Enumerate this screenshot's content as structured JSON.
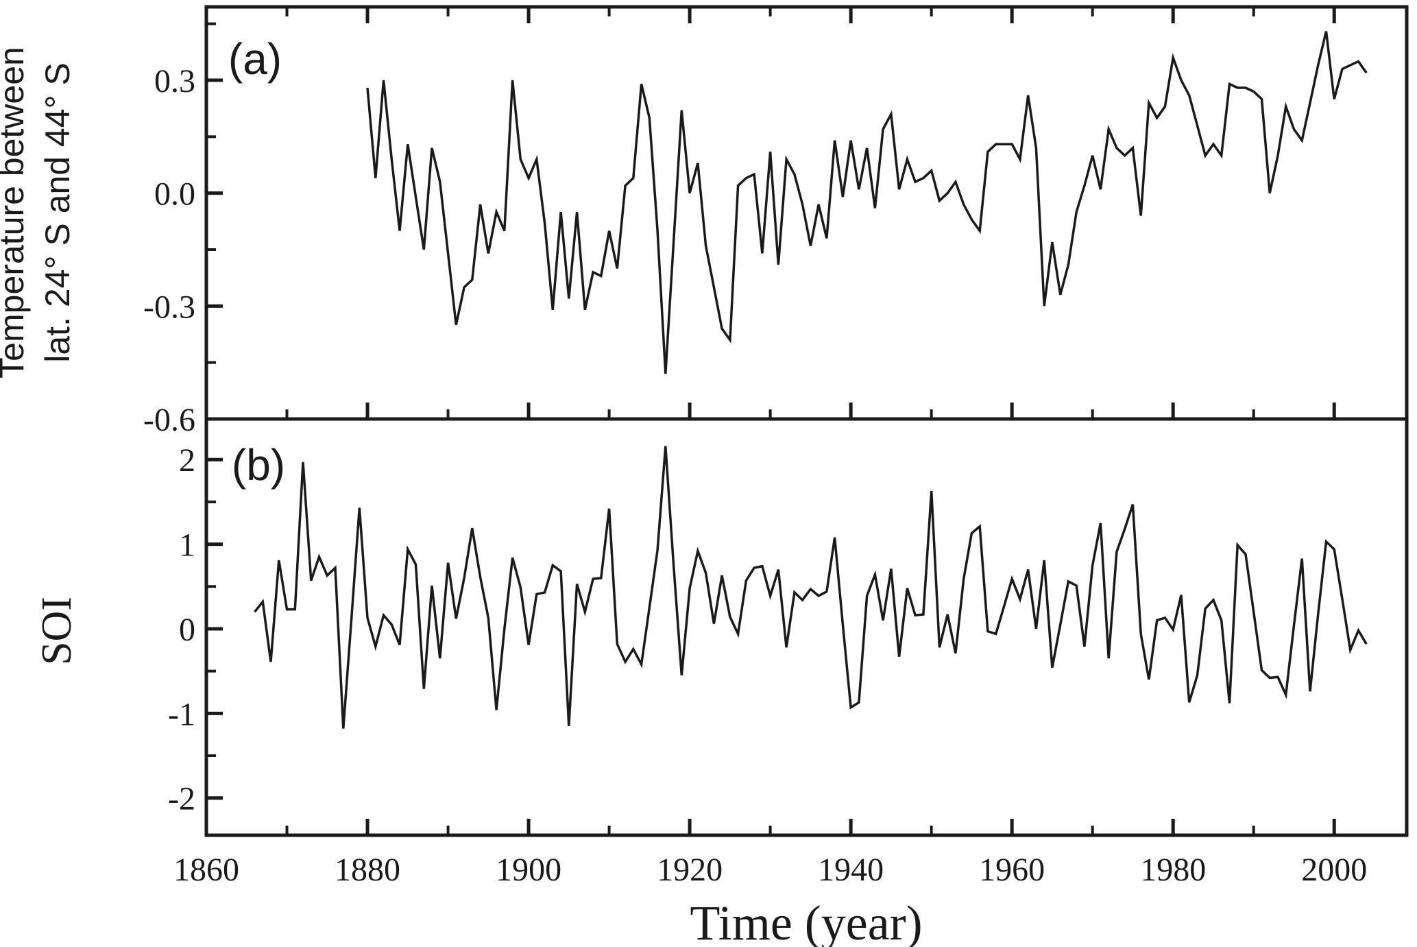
{
  "figure": {
    "xlabel": "Time (year)",
    "panel_a_label": "(a)",
    "panel_b_label": "(b)",
    "ylabel_a_line1": "Temperature between",
    "ylabel_a_line2": "lat. 24° S and 44° S",
    "ylabel_b": "SOI",
    "line_color": "#1a1a1a",
    "background": "#ffffff"
  },
  "chart_data": [
    {
      "type": "line",
      "panel": "(a)",
      "series_name": "Temperature between lat. 24° S and 44° S",
      "xlabel": "Time (year)",
      "ylabel": "Temperature between lat. 24° S and 44° S",
      "grid": false,
      "legend": "none",
      "xlim": [
        1860,
        2009
      ],
      "ylim": [
        -0.6,
        0.495
      ],
      "xticks_major": [
        1860,
        1880,
        1900,
        1920,
        1940,
        1960,
        1980,
        2000
      ],
      "xticks_minor": [
        1870,
        1890,
        1910,
        1930,
        1950,
        1970,
        1990
      ],
      "yticks_major": [
        0.3,
        0.0,
        -0.3,
        -0.6
      ],
      "ytick_labels": [
        "0.3",
        "0.0",
        "-0.3",
        "-0.6"
      ],
      "yticks_minor": [
        0.45,
        0.15,
        -0.15,
        -0.45
      ],
      "x_start": 1880,
      "x_step": 1,
      "values": [
        0.28,
        0.04,
        0.3,
        0.09,
        -0.1,
        0.13,
        -0.01,
        -0.15,
        0.12,
        0.03,
        -0.16,
        -0.35,
        -0.25,
        -0.23,
        -0.03,
        -0.16,
        -0.05,
        -0.1,
        0.3,
        0.09,
        0.04,
        0.09,
        -0.08,
        -0.31,
        -0.05,
        -0.28,
        -0.05,
        -0.31,
        -0.21,
        -0.22,
        -0.1,
        -0.2,
        0.02,
        0.04,
        0.29,
        0.2,
        -0.1,
        -0.48,
        -0.13,
        0.22,
        0.0,
        0.08,
        -0.14,
        -0.25,
        -0.36,
        -0.39,
        0.02,
        0.04,
        0.05,
        -0.16,
        0.11,
        -0.19,
        0.09,
        0.05,
        -0.03,
        -0.14,
        -0.03,
        -0.12,
        0.14,
        -0.01,
        0.14,
        0.01,
        0.12,
        -0.04,
        0.17,
        0.21,
        0.01,
        0.09,
        0.03,
        0.04,
        0.06,
        -0.02,
        0.0,
        0.03,
        -0.03,
        -0.07,
        -0.1,
        0.11,
        0.13,
        0.13,
        0.13,
        0.09,
        0.26,
        0.12,
        -0.3,
        -0.13,
        -0.27,
        -0.19,
        -0.05,
        0.02,
        0.1,
        0.01,
        0.17,
        0.12,
        0.1,
        0.12,
        -0.06,
        0.24,
        0.2,
        0.23,
        0.36,
        0.3,
        0.26,
        0.18,
        0.1,
        0.13,
        0.1,
        0.29,
        0.28,
        0.28,
        0.27,
        0.25,
        0.0,
        0.1,
        0.23,
        0.17,
        0.14,
        0.24,
        0.34,
        0.43,
        0.25,
        0.33,
        0.34,
        0.35,
        0.32
      ]
    },
    {
      "type": "line",
      "panel": "(b)",
      "series_name": "SOI",
      "xlabel": "Time (year)",
      "ylabel": "SOI",
      "grid": false,
      "legend": "none",
      "xlim": [
        1860,
        2009
      ],
      "ylim": [
        -2.44,
        2.48
      ],
      "xticks_major": [
        1860,
        1880,
        1900,
        1920,
        1940,
        1960,
        1980,
        2000
      ],
      "xticks_minor": [
        1870,
        1890,
        1910,
        1930,
        1950,
        1970,
        1990
      ],
      "yticks_major": [
        2,
        1,
        0,
        -1,
        -2
      ],
      "ytick_labels": [
        "2",
        "1",
        "0",
        "-1",
        "-2"
      ],
      "yticks_minor": [
        1.5,
        0.5,
        -0.5,
        -1.5
      ],
      "x_start": 1866,
      "x_step": 1,
      "values": [
        0.2,
        0.32,
        -0.39,
        0.81,
        0.23,
        0.23,
        1.97,
        0.57,
        0.85,
        0.63,
        0.72,
        -1.18,
        0.1,
        1.43,
        0.13,
        -0.21,
        0.16,
        0.05,
        -0.19,
        0.94,
        0.76,
        -0.71,
        0.51,
        -0.35,
        0.78,
        0.12,
        0.6,
        1.19,
        0.61,
        0.13,
        -0.96,
        0.0,
        0.84,
        0.49,
        -0.19,
        0.41,
        0.43,
        0.75,
        0.68,
        -1.15,
        0.53,
        0.2,
        0.59,
        0.6,
        1.42,
        -0.18,
        -0.39,
        -0.24,
        -0.42,
        0.25,
        0.93,
        2.16,
        0.75,
        -0.55,
        0.48,
        0.92,
        0.66,
        0.06,
        0.63,
        0.14,
        -0.06,
        0.57,
        0.72,
        0.74,
        0.39,
        0.7,
        -0.22,
        0.43,
        0.34,
        0.47,
        0.39,
        0.44,
        1.08,
        0.05,
        -0.93,
        -0.87,
        0.39,
        0.64,
        0.1,
        0.71,
        -0.33,
        0.48,
        0.16,
        0.17,
        1.63,
        -0.22,
        0.17,
        -0.29,
        0.59,
        1.13,
        1.21,
        -0.03,
        -0.06,
        0.26,
        0.59,
        0.35,
        0.7,
        0.0,
        0.81,
        -0.46,
        0.05,
        0.56,
        0.51,
        -0.21,
        0.75,
        1.25,
        -0.35,
        0.91,
        1.18,
        1.47,
        -0.06,
        -0.6,
        0.1,
        0.13,
        -0.01,
        0.4,
        -0.87,
        -0.55,
        0.24,
        0.34,
        0.1,
        -0.88,
        0.99,
        0.88,
        0.2,
        -0.49,
        -0.58,
        -0.57,
        -0.78,
        0.04,
        0.83,
        -0.74,
        0.17,
        1.03,
        0.94,
        0.35,
        -0.25,
        -0.02,
        -0.18
      ]
    }
  ]
}
